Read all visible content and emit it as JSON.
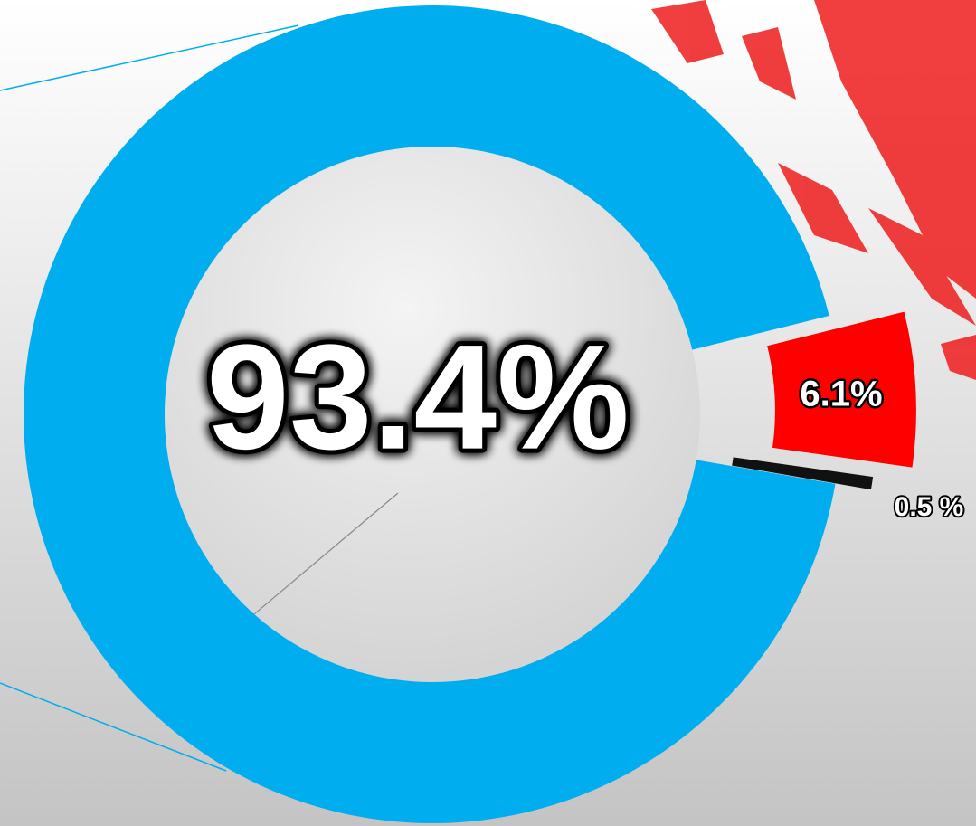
{
  "chart_data": {
    "type": "donut",
    "values": [
      93.4,
      6.1,
      0.5
    ],
    "value_labels": [
      "93.4%",
      "6.1%",
      "0.5 %"
    ],
    "colors": [
      "#00adef",
      "#ff0000",
      "#111111"
    ]
  }
}
